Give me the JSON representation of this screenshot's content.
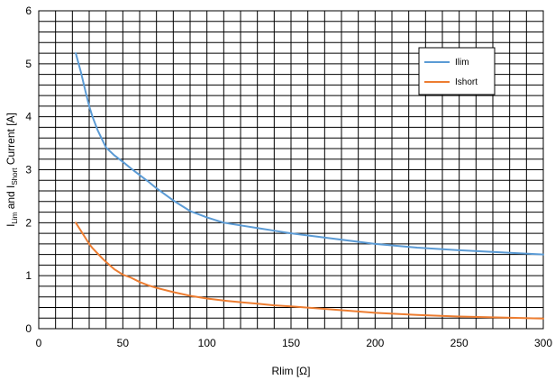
{
  "chart_data": {
    "type": "line",
    "title": "",
    "xlabel": "Rlim [Ω]",
    "ylabel": {
      "parts": [
        {
          "text": "I"
        },
        {
          "text": "Lim",
          "sub": true
        },
        {
          "text": " and I"
        },
        {
          "text": "Short",
          "sub": true
        },
        {
          "text": " Current [A]"
        }
      ]
    },
    "xlim": [
      0,
      300
    ],
    "ylim": [
      0,
      6
    ],
    "xticks": [
      0,
      50,
      100,
      150,
      200,
      250,
      300
    ],
    "yticks": [
      0,
      1,
      2,
      3,
      4,
      5,
      6
    ],
    "grid": true,
    "grid_x_step": 10,
    "grid_y_step": 0.2,
    "legend_position": "top-right",
    "series": [
      {
        "name": "Ilim",
        "color": "#5B9BD5",
        "x": [
          22,
          25,
          28,
          30,
          32,
          35,
          38,
          40,
          45,
          50,
          55,
          60,
          65,
          70,
          80,
          90,
          100,
          110,
          120,
          130,
          140,
          150,
          175,
          200,
          225,
          250,
          275,
          300
        ],
        "y": [
          5.2,
          4.85,
          4.45,
          4.2,
          4.0,
          3.75,
          3.55,
          3.42,
          3.27,
          3.15,
          3.02,
          2.9,
          2.78,
          2.65,
          2.42,
          2.22,
          2.1,
          2.0,
          1.95,
          1.9,
          1.85,
          1.8,
          1.7,
          1.6,
          1.53,
          1.48,
          1.44,
          1.4
        ]
      },
      {
        "name": "Ishort",
        "color": "#ED7D31",
        "x": [
          22,
          25,
          28,
          30,
          32,
          35,
          38,
          40,
          45,
          50,
          55,
          60,
          65,
          70,
          80,
          90,
          100,
          110,
          120,
          130,
          140,
          150,
          175,
          200,
          225,
          250,
          275,
          300
        ],
        "y": [
          2.0,
          1.85,
          1.7,
          1.6,
          1.52,
          1.42,
          1.32,
          1.26,
          1.12,
          1.02,
          0.96,
          0.88,
          0.82,
          0.77,
          0.69,
          0.62,
          0.57,
          0.53,
          0.5,
          0.47,
          0.44,
          0.42,
          0.36,
          0.3,
          0.26,
          0.23,
          0.21,
          0.19
        ]
      }
    ]
  }
}
